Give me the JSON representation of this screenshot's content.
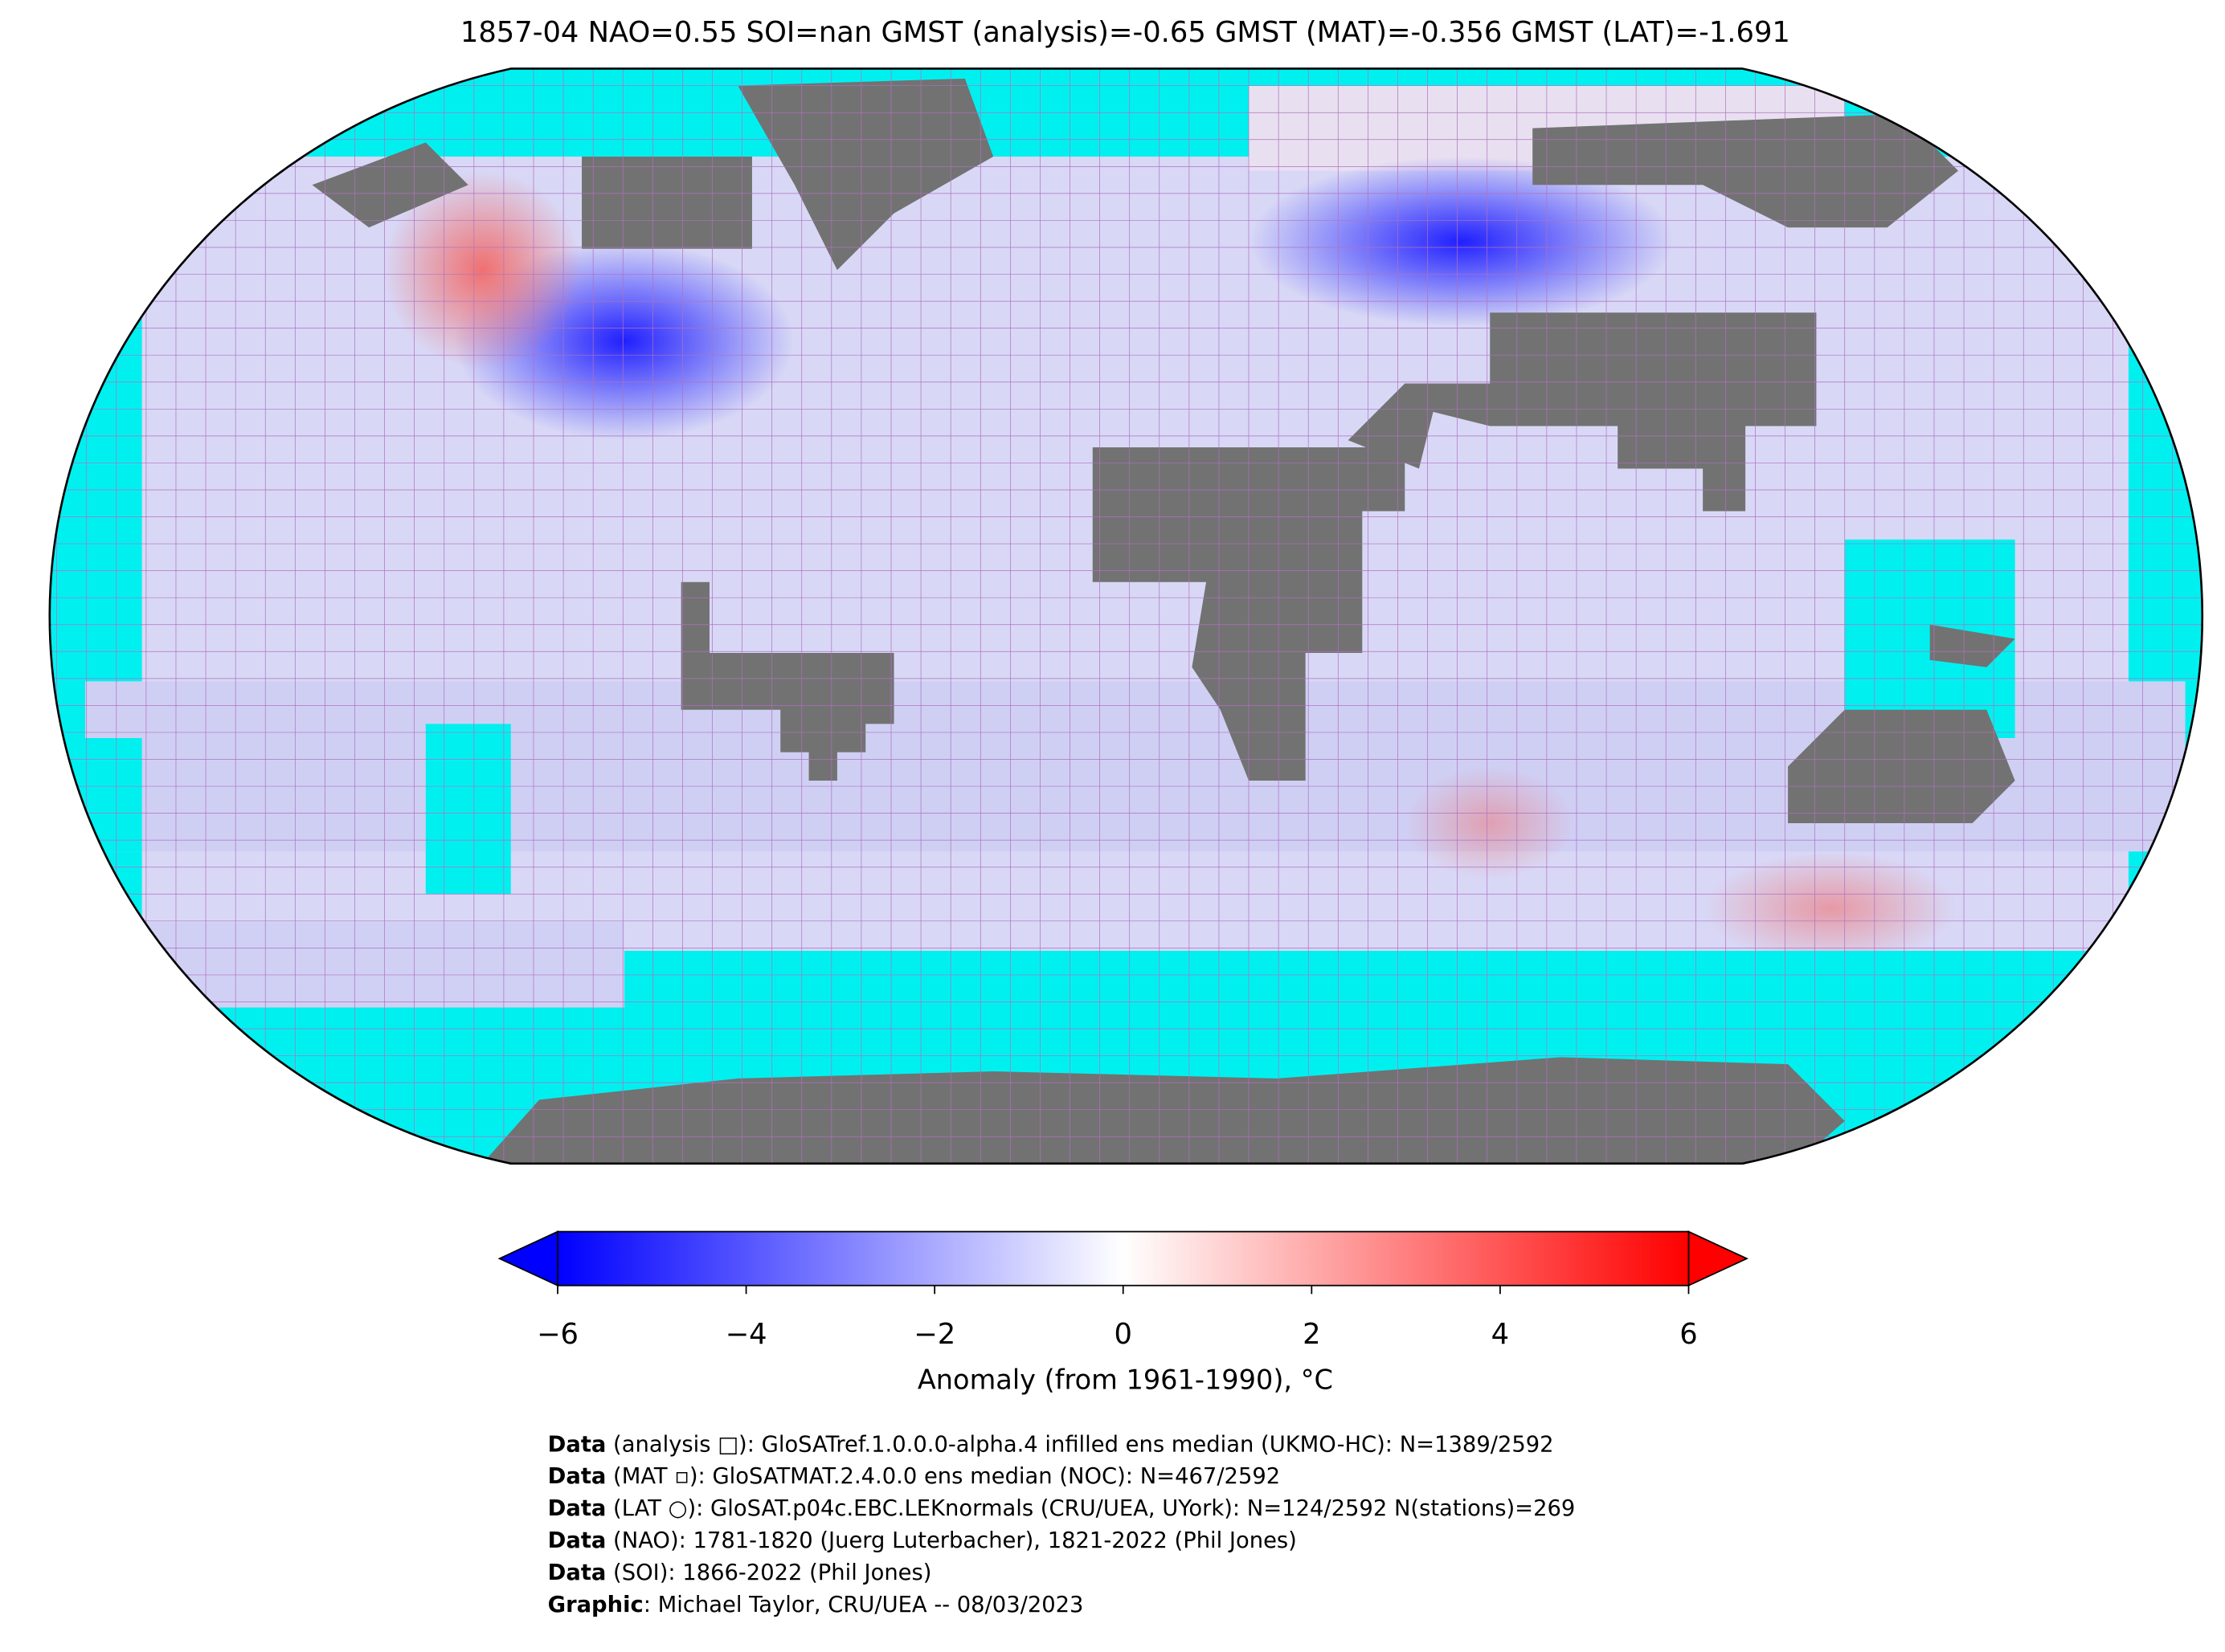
{
  "title": "1857-04 NAO=0.55 SOI=nan GMST (analysis)=-0.65 GMST (MAT)=-0.356 GMST (LAT)=-1.691",
  "colorbar": {
    "lim": [
      -6,
      6
    ],
    "ticks": [
      {
        "value": -6,
        "label": "−6"
      },
      {
        "value": -4,
        "label": "−4"
      },
      {
        "value": -2,
        "label": "−2"
      },
      0,
      2,
      4,
      6
    ],
    "colors": [
      "#0000ff",
      "#ffffff",
      "#ff0000"
    ],
    "label": "Anomaly (from 1961-1990), °C"
  },
  "footer": {
    "lines": [
      {
        "bold": "Data",
        "text": " (analysis □): GloSATref.1.0.0.0-alpha.4 infilled ens median (UKMO-HC): N=1389/2592"
      },
      {
        "bold": "Data",
        "text": " (MAT ▫): GloSATMAT.2.4.0.0 ens median (NOC): N=467/2592"
      },
      {
        "bold": "Data",
        "text": " (LAT ○): GloSAT.p04c.EBC.LEKnormals (CRU/UEA, UYork): N=124/2592 N(stations)=269"
      },
      {
        "bold": "Data",
        "text": " (NAO): 1781-1820 (Juerg Luterbacher), 1821-2022 (Phil Jones)"
      },
      {
        "bold": "Data",
        "text": " (SOI): 1866-2022 (Phil Jones)"
      },
      {
        "bold": "Graphic",
        "text": ": Michael Taylor, CRU/UEA -- 08/03/2023"
      }
    ]
  }
}
